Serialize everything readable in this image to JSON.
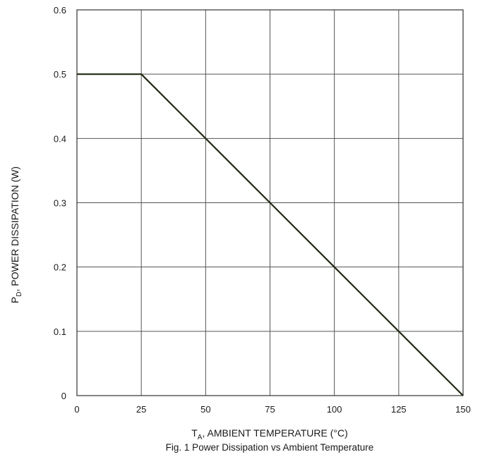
{
  "chart_data": {
    "type": "line",
    "caption": "Fig. 1  Power Dissipation vs Ambient Temperature",
    "xlabel": {
      "symbol": "T",
      "subscript": "A",
      "text": ", AMBIENT TEMPERATURE (°C)"
    },
    "ylabel": {
      "symbol": "P",
      "subscript": "D",
      "text": ", POWER DISSIPATION (W)"
    },
    "xlim": [
      0,
      150
    ],
    "ylim": [
      0,
      0.6
    ],
    "x_ticks": [
      0,
      25,
      50,
      75,
      100,
      125,
      150
    ],
    "x_tick_labels": [
      "0",
      "25",
      "50",
      "75",
      "100",
      "125",
      "150"
    ],
    "y_ticks": [
      0,
      0.1,
      0.2,
      0.3,
      0.4,
      0.5,
      0.6
    ],
    "y_tick_labels": [
      "0",
      "0.1",
      "0.2",
      "0.3",
      "0.4",
      "0.5",
      "0.6"
    ],
    "grid": true,
    "series": [
      {
        "x": [
          0,
          25,
          150
        ],
        "y": [
          0.5,
          0.5,
          0
        ],
        "color": "#1f2a12"
      }
    ]
  }
}
